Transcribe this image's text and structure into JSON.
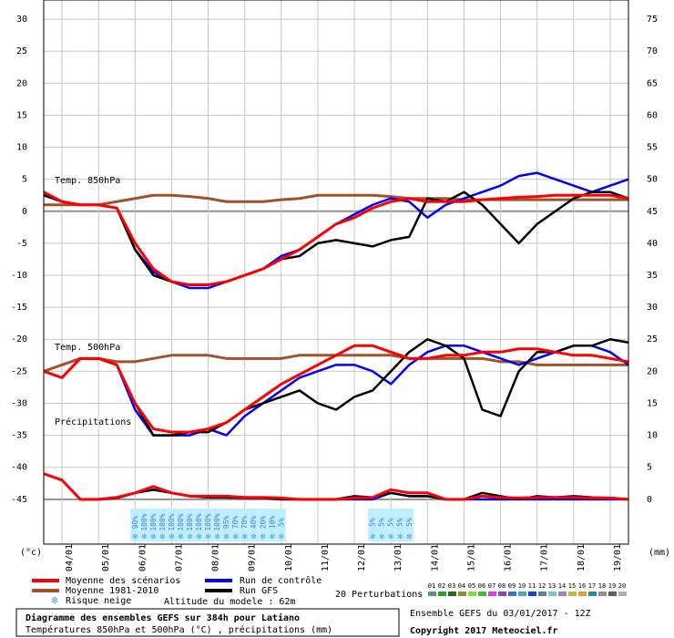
{
  "chart_data": {
    "type": "line",
    "title": "Diagramme des ensembles GEFS sur 384h pour Latiano",
    "subtitle": "Températures 850hPa et 500hPa (°C) , précipitations (mm)",
    "run_label": "Ensemble GEFS du 03/01/2017 - 12Z",
    "copyright": "Copyright 2017 Meteociel.fr",
    "annotations": [
      "Temp. 850hPa",
      "Temp. 500hPa",
      "Précipitations"
    ],
    "y_unit": "(°c)",
    "y2_unit": "(mm)",
    "altitude": "Altitude du modele : 62m",
    "snow_legend": "Risque neige",
    "perturbations_label": "20 Perturbations",
    "perturbations": [
      {
        "name": "01",
        "color": "#5f8f8f"
      },
      {
        "name": "02",
        "color": "#2fa02f"
      },
      {
        "name": "03",
        "color": "#1f6f1f"
      },
      {
        "name": "04",
        "color": "#8f8f1f"
      },
      {
        "name": "05",
        "color": "#7fdf3f"
      },
      {
        "name": "06",
        "color": "#3fbf3f"
      },
      {
        "name": "07",
        "color": "#df3fdf"
      },
      {
        "name": "08",
        "color": "#8f3fbf"
      },
      {
        "name": "09",
        "color": "#3f6fdf"
      },
      {
        "name": "10",
        "color": "#3fafaf"
      },
      {
        "name": "11",
        "color": "#1f3fbf"
      },
      {
        "name": "12",
        "color": "#5f7f9f"
      },
      {
        "name": "13",
        "color": "#7fbfdf"
      },
      {
        "name": "14",
        "color": "#9f7fbf"
      },
      {
        "name": "15",
        "color": "#bfbf3f"
      },
      {
        "name": "16",
        "color": "#df9f3f"
      },
      {
        "name": "17",
        "color": "#1f8f8f"
      },
      {
        "name": "18",
        "color": "#8f8f8f"
      },
      {
        "name": "19",
        "color": "#5f5f5f"
      },
      {
        "name": "20",
        "color": "#afafaf"
      }
    ],
    "x": [
      0,
      12,
      24,
      36,
      48,
      60,
      72,
      84,
      96,
      108,
      120,
      132,
      144,
      156,
      168,
      180,
      192,
      204,
      216,
      228,
      240,
      252,
      264,
      276,
      288,
      300,
      312,
      324,
      336,
      348,
      360,
      372,
      384
    ],
    "xlim": [
      0,
      384
    ],
    "xticks": [
      {
        "value": 12,
        "label": "04/01"
      },
      {
        "value": 36,
        "label": "05/01"
      },
      {
        "value": 60,
        "label": "06/01"
      },
      {
        "value": 84,
        "label": "07/01"
      },
      {
        "value": 108,
        "label": "08/01"
      },
      {
        "value": 132,
        "label": "09/01"
      },
      {
        "value": 156,
        "label": "10/01"
      },
      {
        "value": 180,
        "label": "11/01"
      },
      {
        "value": 204,
        "label": "12/01"
      },
      {
        "value": 228,
        "label": "13/01"
      },
      {
        "value": 252,
        "label": "14/01"
      },
      {
        "value": 276,
        "label": "15/01"
      },
      {
        "value": 300,
        "label": "16/01"
      },
      {
        "value": 324,
        "label": "17/01"
      },
      {
        "value": 348,
        "label": "18/01"
      },
      {
        "value": 372,
        "label": "19/01"
      }
    ],
    "ylim": [
      -52,
      33
    ],
    "yticks": [
      -45,
      -40,
      -35,
      -30,
      -25,
      -20,
      -15,
      -10,
      -5,
      0,
      5,
      10,
      15,
      20,
      25,
      30
    ],
    "y2lim": [
      -7,
      78
    ],
    "y2ticks": [
      0,
      5,
      10,
      15,
      20,
      25,
      30,
      35,
      40,
      45,
      50,
      55,
      60,
      65,
      70,
      75
    ],
    "grid": true,
    "series": [
      {
        "name": "Moyenne des scénarios",
        "color": "#ff0000",
        "values": [
          3,
          1.5,
          1,
          1,
          0.5,
          -5,
          -9,
          -11,
          -11.5,
          -11.5,
          -11,
          -10,
          -9,
          -7.5,
          -6,
          -4,
          -2,
          -1,
          0.5,
          1.5,
          2,
          1.5,
          1.5,
          1.5,
          1.8,
          2,
          2.2,
          2.3,
          2.5,
          2.5,
          2.5,
          2.5,
          2
        ],
        "values_500": [
          -25,
          -26,
          -23,
          -23,
          -24,
          -30,
          -34,
          -34.5,
          -34.5,
          -34,
          -33,
          -31,
          -29,
          -27,
          -25.5,
          -24,
          -22.5,
          -21,
          -21,
          -22,
          -23,
          -23,
          -22.5,
          -22.5,
          -22,
          -22,
          -21.5,
          -21.5,
          -22,
          -22.5,
          -22.5,
          -23,
          -23.5
        ],
        "values_precip": [
          4,
          3,
          0,
          0,
          0.3,
          1,
          2,
          1,
          0.5,
          0.5,
          0.5,
          0.3,
          0.3,
          0.2,
          0,
          0,
          0,
          0.2,
          0.3,
          1.5,
          1,
          1,
          0,
          0,
          0.5,
          0.3,
          0.2,
          0.3,
          0.3,
          0.3,
          0.2,
          0.2,
          0
        ]
      },
      {
        "name": "Moyenne 1981-2010",
        "color": "#a0522d",
        "values": [
          1,
          1,
          1,
          1,
          1.5,
          2,
          2.5,
          2.5,
          2.3,
          2,
          1.5,
          1.5,
          1.5,
          1.8,
          2,
          2.5,
          2.5,
          2.5,
          2.5,
          2.3,
          2,
          2,
          2,
          1.8,
          1.8,
          1.8,
          1.8,
          1.8,
          1.8,
          1.8,
          1.8,
          1.8,
          1.8
        ],
        "values_500": [
          -25,
          -24,
          -23,
          -23,
          -23.5,
          -23.5,
          -23,
          -22.5,
          -22.5,
          -22.5,
          -23,
          -23,
          -23,
          -23,
          -22.5,
          -22.5,
          -22.5,
          -22.5,
          -22.5,
          -22.5,
          -23,
          -23,
          -23,
          -23,
          -23,
          -23.5,
          -23.5,
          -24,
          -24,
          -24,
          -24,
          -24,
          -24
        ]
      },
      {
        "name": "Run de contrôle",
        "color": "#0000ff",
        "values": [
          2.5,
          1.5,
          1,
          1,
          0.5,
          -6,
          -9.5,
          -11,
          -12,
          -12,
          -11,
          -10,
          -9,
          -7,
          -6,
          -4,
          -2,
          -0.5,
          1,
          2,
          1.5,
          -1,
          1,
          2,
          3,
          4,
          5.5,
          6,
          5,
          4,
          3,
          4,
          5
        ],
        "values_500": [
          -25,
          -26,
          -23,
          -23,
          -24,
          -31,
          -35,
          -35,
          -35,
          -34,
          -35,
          -32,
          -30,
          -28,
          -26,
          -25,
          -24,
          -24,
          -25,
          -27,
          -24,
          -22,
          -21,
          -21,
          -22,
          -23,
          -24,
          -23,
          -22,
          -21,
          -21,
          -22,
          -24
        ],
        "values_precip": [
          4,
          3,
          0,
          0,
          0.2,
          1,
          1.5,
          1,
          0.5,
          0.5,
          0.3,
          0.2,
          0.2,
          0,
          0,
          0,
          0,
          0,
          0,
          1,
          0.5,
          0.5,
          0,
          0,
          0,
          0,
          0,
          0,
          0,
          0,
          0,
          0,
          0
        ]
      },
      {
        "name": "Run GFS",
        "color": "#000000",
        "values": [
          2.5,
          1.5,
          1,
          1,
          0.5,
          -6,
          -10,
          -11,
          -11.5,
          -11.5,
          -11,
          -10,
          -9,
          -7.5,
          -7,
          -5,
          -4.5,
          -5,
          -5.5,
          -4.5,
          -4,
          2,
          1.5,
          3,
          1,
          -2,
          -5,
          -2,
          0,
          2,
          3,
          3,
          2
        ],
        "values_500": [
          -25,
          -26,
          -23,
          -23,
          -24,
          -30,
          -35,
          -35,
          -34.5,
          -34.5,
          -33,
          -31,
          -30,
          -29,
          -28,
          -30,
          -31,
          -29,
          -28,
          -25,
          -22,
          -20,
          -21,
          -23,
          -31,
          -32,
          -25,
          -22,
          -22,
          -21,
          -21,
          -20,
          -20.5
        ],
        "values_precip": [
          4,
          3,
          0,
          0,
          0.2,
          1,
          1.5,
          1,
          0.5,
          0.3,
          0.3,
          0.2,
          0.2,
          0,
          0,
          0,
          0,
          0.5,
          0.3,
          1,
          0.5,
          0.5,
          0,
          0,
          1,
          0.5,
          0,
          0.5,
          0.3,
          0.5,
          0.3,
          0.2,
          0
        ]
      }
    ],
    "snow_risk": {
      "hours": [
        60,
        66,
        72,
        78,
        84,
        90,
        96,
        102,
        108,
        114,
        120,
        126,
        132,
        138,
        144,
        150,
        156,
        216,
        222,
        228,
        234,
        240
      ],
      "labels": [
        "90%",
        "100%",
        "100%",
        "100%",
        "100%",
        "100%",
        "100%",
        "100%",
        "100%",
        "100%",
        "95%",
        "70%",
        "70%",
        "40%",
        "20%",
        "10%",
        "5%",
        "5%",
        "5%",
        "5%",
        "5%",
        "5%"
      ]
    }
  }
}
